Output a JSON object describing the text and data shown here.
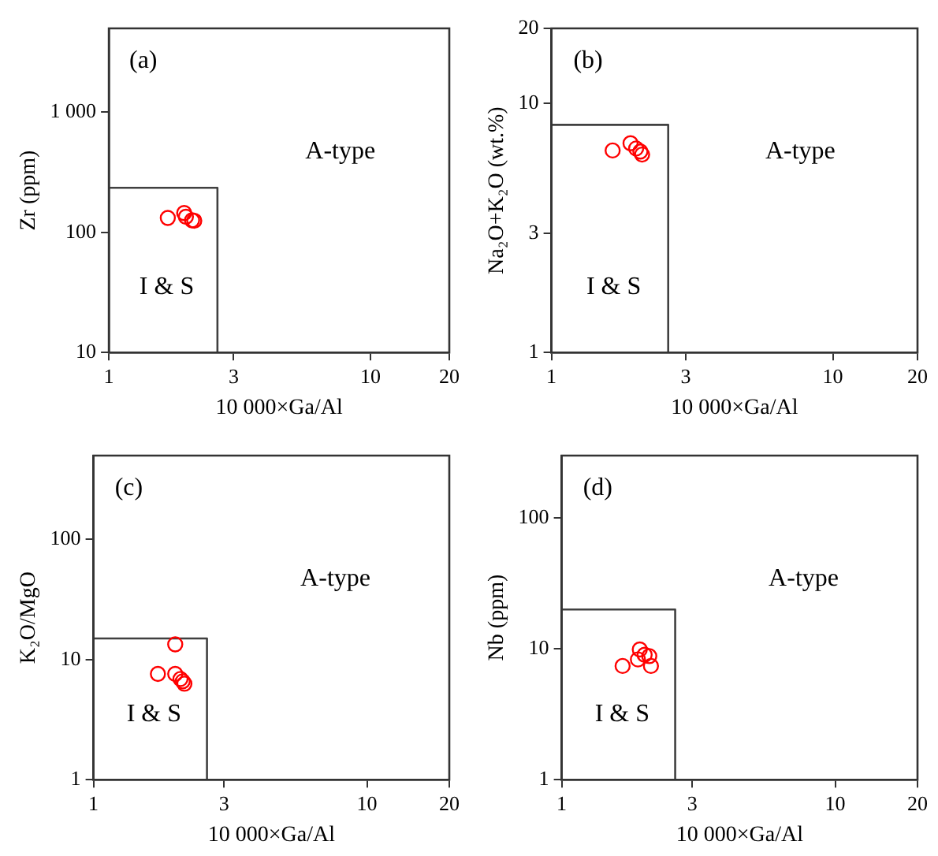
{
  "chart_data": [
    {
      "type": "scatter",
      "xlabel": "10 000×Ga/Al",
      "ylabel": "Zr (ppm)",
      "log": "xy",
      "xlim": [
        1,
        20
      ],
      "xticks": [
        1,
        3,
        10,
        20
      ],
      "ylim": [
        10,
        5000
      ],
      "yticks": [
        10,
        100,
        {
          "value": 1000,
          "label": "1 000"
        }
      ],
      "marker": "circle",
      "grid": false,
      "annotations": [
        "(a)",
        "A-type",
        "I & S"
      ],
      "series": [
        {
          "type": "scatter",
          "color": "#ff0000",
          "x": [
            1.68,
            1.94,
            1.97,
            2.08,
            2.12
          ],
          "values": [
            132,
            145,
            135,
            126,
            125
          ]
        },
        {
          "type": "line",
          "color": "#404040",
          "marker": "none",
          "x": [
            1,
            2.6,
            2.6
          ],
          "values": [
            235,
            235,
            10
          ]
        }
      ]
    },
    {
      "type": "scatter",
      "xlabel": "10 000×Ga/Al",
      "ylabel": "Na₂O+K₂O (wt.%)",
      "log": "xy",
      "xlim": [
        1,
        20
      ],
      "xticks": [
        1,
        3,
        10,
        20
      ],
      "ylim": [
        1,
        20
      ],
      "yticks": [
        1,
        3,
        10,
        20
      ],
      "marker": "circle",
      "grid": false,
      "annotations": [
        "(b)",
        "A-type",
        "I & S"
      ],
      "series": [
        {
          "type": "scatter",
          "color": "#ff0000",
          "x": [
            1.65,
            1.91,
            2.0,
            2.1,
            2.07
          ],
          "values": [
            6.47,
            6.92,
            6.59,
            6.23,
            6.41
          ]
        },
        {
          "type": "line",
          "color": "#404040",
          "marker": "none",
          "x": [
            1,
            2.6,
            2.6
          ],
          "values": [
            8.2,
            8.2,
            1
          ]
        }
      ]
    },
    {
      "type": "scatter",
      "xlabel": "10 000×Ga/Al",
      "ylabel": "K₂O/MgO",
      "log": "xy",
      "xlim": [
        1,
        20
      ],
      "xticks": [
        1,
        3,
        10,
        20
      ],
      "ylim": [
        1,
        500
      ],
      "yticks": [
        1,
        10,
        100
      ],
      "marker": "circle",
      "grid": false,
      "annotations": [
        "(c)",
        "A-type",
        "I & S"
      ],
      "series": [
        {
          "type": "scatter",
          "color": "#ff0000",
          "x": [
            1.99,
            1.72,
            1.99,
            2.08,
            2.12,
            2.15
          ],
          "values": [
            13.4,
            7.6,
            7.6,
            6.9,
            6.6,
            6.3
          ]
        },
        {
          "type": "line",
          "color": "#404040",
          "marker": "none",
          "x": [
            1,
            2.6,
            2.6
          ],
          "values": [
            15,
            15,
            1
          ]
        }
      ]
    },
    {
      "type": "scatter",
      "xlabel": "10 000×Ga/Al",
      "ylabel": "Nb (ppm)",
      "log": "xy",
      "xlim": [
        1,
        20
      ],
      "xticks": [
        1,
        3,
        10,
        20
      ],
      "ylim": [
        1,
        300
      ],
      "yticks": [
        1,
        10,
        100
      ],
      "marker": "circle",
      "grid": false,
      "annotations": [
        "(d)",
        "A-type",
        "I & S"
      ],
      "series": [
        {
          "type": "scatter",
          "color": "#ff0000",
          "x": [
            1.67,
            1.93,
            1.9,
            2.01,
            2.09,
            2.12
          ],
          "values": [
            7.4,
            9.9,
            8.3,
            9.0,
            8.8,
            7.4
          ]
        },
        {
          "type": "line",
          "color": "#404040",
          "marker": "none",
          "x": [
            1,
            2.6,
            2.6
          ],
          "values": [
            20,
            20,
            1
          ]
        }
      ]
    }
  ]
}
